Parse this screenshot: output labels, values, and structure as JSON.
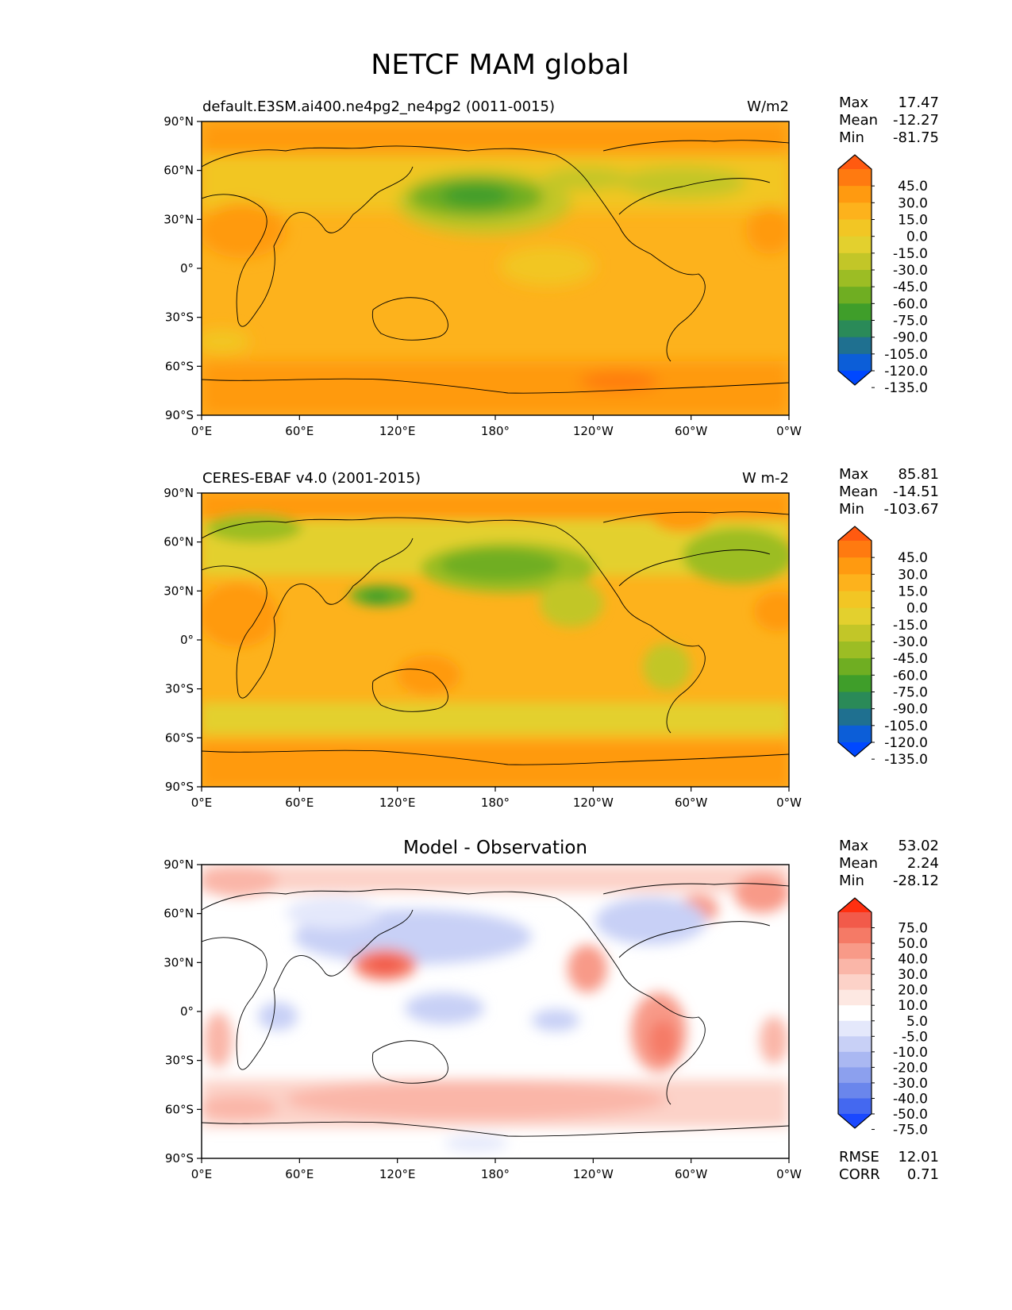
{
  "figure_title": "NETCF MAM global",
  "chart_data": [
    {
      "type": "heatmap",
      "title_left": "default.E3SM.ai400.ne4pg2_ne4pg2 (0011-0015)",
      "title_center": "",
      "units": "W/m2",
      "stats": [
        {
          "label": "Max",
          "value": "17.47"
        },
        {
          "label": "Mean",
          "value": "-12.27"
        },
        {
          "label": "Min",
          "value": "-81.75"
        }
      ],
      "colorbar_labels": [
        "45.0",
        "30.0",
        "15.0",
        "0.0",
        "-15.0",
        "-30.0",
        "-45.0",
        "-60.0",
        "-75.0",
        "-90.0",
        "-105.0",
        "-120.0",
        "-135.0"
      ],
      "colorbar_colors": [
        "#ff5a10",
        "#ff7a10",
        "#ff9a10",
        "#fdb21c",
        "#f2c624",
        "#e3d02e",
        "#c2c628",
        "#9cbd24",
        "#6fae22",
        "#3f9e2a",
        "#2a8a58",
        "#1f7090",
        "#0c5ed8",
        "#0048ff"
      ],
      "xticks": [
        "0°E",
        "60°E",
        "120°E",
        "180°",
        "120°W",
        "60°W",
        "0°W"
      ],
      "yticks": [
        "90°N",
        "60°N",
        "30°N",
        "0°",
        "30°S",
        "60°S",
        "90°S"
      ],
      "xlim": [
        0,
        360
      ],
      "ylim": [
        -90,
        90
      ]
    },
    {
      "type": "heatmap",
      "title_left": "CERES-EBAF v4.0 (2001-2015)",
      "title_center": "",
      "units": "W m-2",
      "stats": [
        {
          "label": "Max",
          "value": "85.81"
        },
        {
          "label": "Mean",
          "value": "-14.51"
        },
        {
          "label": "Min",
          "value": "-103.67"
        }
      ],
      "colorbar_labels": [
        "45.0",
        "30.0",
        "15.0",
        "0.0",
        "-15.0",
        "-30.0",
        "-45.0",
        "-60.0",
        "-75.0",
        "-90.0",
        "-105.0",
        "-120.0",
        "-135.0"
      ],
      "colorbar_colors": [
        "#ff5a10",
        "#ff7a10",
        "#ff9a10",
        "#fdb21c",
        "#f2c624",
        "#e3d02e",
        "#c2c628",
        "#9cbd24",
        "#6fae22",
        "#3f9e2a",
        "#2a8a58",
        "#1f7090",
        "#0c5ed8",
        "#0048ff"
      ],
      "xticks": [
        "0°E",
        "60°E",
        "120°E",
        "180°",
        "120°W",
        "60°W",
        "0°W"
      ],
      "yticks": [
        "90°N",
        "60°N",
        "30°N",
        "0°",
        "30°S",
        "60°S",
        "90°S"
      ],
      "xlim": [
        0,
        360
      ],
      "ylim": [
        -90,
        90
      ]
    },
    {
      "type": "heatmap",
      "title_left": "",
      "title_center": "Model - Observation",
      "units": "",
      "stats": [
        {
          "label": "Max",
          "value": "53.02"
        },
        {
          "label": "Mean",
          "value": "2.24"
        },
        {
          "label": "Min",
          "value": "-28.12"
        }
      ],
      "extra_stats": [
        {
          "label": "RMSE",
          "value": "12.01"
        },
        {
          "label": "CORR",
          "value": "0.71"
        }
      ],
      "colorbar_labels": [
        "75.0",
        "50.0",
        "40.0",
        "30.0",
        "20.0",
        "10.0",
        "5.0",
        "-5.0",
        "-10.0",
        "-20.0",
        "-30.0",
        "-40.0",
        "-50.0",
        "-75.0"
      ],
      "colorbar_colors": [
        "#ff3010",
        "#f25a4a",
        "#f57a66",
        "#f89a88",
        "#fab6a8",
        "#fcd2c8",
        "#fde8e2",
        "#ffffff",
        "#e4e8fb",
        "#c8d0f6",
        "#aab8f2",
        "#8ca0ee",
        "#6a86ec",
        "#4468f0",
        "#1a48ff"
      ],
      "xticks": [
        "0°E",
        "60°E",
        "120°E",
        "180°",
        "120°W",
        "60°W",
        "0°W"
      ],
      "yticks": [
        "90°N",
        "60°N",
        "30°N",
        "0°",
        "30°S",
        "60°S",
        "90°S"
      ],
      "xlim": [
        0,
        360
      ],
      "ylim": [
        -90,
        90
      ]
    }
  ]
}
